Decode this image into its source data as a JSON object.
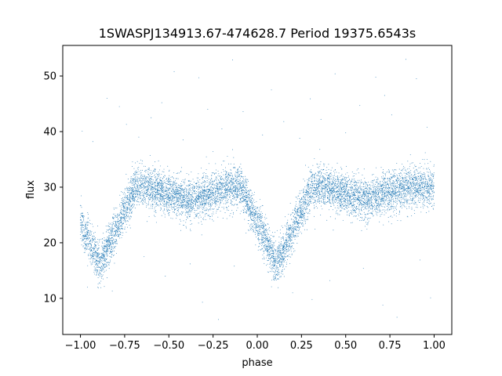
{
  "chart_data": {
    "type": "scatter",
    "title": "1SWASPJ134913.67-474628.7 Period 19375.6543s",
    "xlabel": "phase",
    "ylabel": "flux",
    "xlim": [
      -1.1,
      1.1
    ],
    "ylim": [
      3.5,
      55.5
    ],
    "xticks": [
      -1.0,
      -0.75,
      -0.5,
      -0.25,
      0.0,
      0.25,
      0.5,
      0.75,
      1.0
    ],
    "xtick_labels": [
      "−1.00",
      "−0.75",
      "−0.50",
      "−0.25",
      "0.00",
      "0.25",
      "0.50",
      "0.75",
      "1.00"
    ],
    "yticks": [
      10,
      20,
      30,
      40,
      50
    ],
    "ytick_labels": [
      "10",
      "20",
      "30",
      "40",
      "50"
    ],
    "grid": false,
    "point_color": "#1f77b4",
    "light_curve": {
      "phase_range": [
        -1.0,
        1.0
      ],
      "primary_minimum_phases": [
        -0.89,
        0.11
      ],
      "secondary_minimum_phases": [
        -0.39,
        0.61
      ],
      "primary_minimum_flux": 16,
      "secondary_minimum_flux": 27.5,
      "maximum_flux": 30,
      "scatter_flux": 1.8,
      "primary_eclipse_half_width_phase": 0.2,
      "secondary_eclipse_half_width_phase": 0.22,
      "approx_point_count": 9000
    },
    "outliers": [
      [
        -0.99,
        40.1
      ],
      [
        -0.93,
        38.2
      ],
      [
        -0.85,
        46.0
      ],
      [
        -0.78,
        44.5
      ],
      [
        -0.74,
        41.3
      ],
      [
        -0.67,
        39.0
      ],
      [
        -0.6,
        42.5
      ],
      [
        -0.54,
        45.2
      ],
      [
        -0.47,
        50.8
      ],
      [
        -0.42,
        38.5
      ],
      [
        -0.33,
        49.7
      ],
      [
        -0.28,
        44.0
      ],
      [
        -0.2,
        40.5
      ],
      [
        -0.14,
        52.9
      ],
      [
        -0.08,
        43.6
      ],
      [
        0.03,
        39.4
      ],
      [
        0.08,
        47.5
      ],
      [
        0.15,
        41.8
      ],
      [
        0.24,
        38.8
      ],
      [
        0.3,
        45.9
      ],
      [
        0.36,
        42.2
      ],
      [
        0.44,
        50.4
      ],
      [
        0.5,
        39.8
      ],
      [
        0.58,
        44.7
      ],
      [
        0.67,
        49.8
      ],
      [
        0.72,
        46.5
      ],
      [
        0.76,
        43.0
      ],
      [
        0.84,
        53.0
      ],
      [
        0.9,
        49.5
      ],
      [
        0.96,
        40.8
      ],
      [
        -0.96,
        12.0
      ],
      [
        -0.82,
        11.3
      ],
      [
        -0.64,
        17.5
      ],
      [
        -0.52,
        14.0
      ],
      [
        -0.38,
        16.2
      ],
      [
        -0.31,
        9.3
      ],
      [
        -0.22,
        6.2
      ],
      [
        -0.13,
        15.8
      ],
      [
        0.2,
        11.0
      ],
      [
        0.31,
        9.8
      ],
      [
        0.41,
        13.2
      ],
      [
        0.6,
        15.4
      ],
      [
        0.71,
        8.8
      ],
      [
        0.79,
        6.6
      ],
      [
        0.92,
        16.9
      ],
      [
        0.98,
        10.1
      ],
      [
        -0.9,
        12.6
      ],
      [
        0.1,
        13.6
      ],
      [
        0.95,
        36.2
      ],
      [
        -0.25,
        36.4
      ]
    ]
  }
}
